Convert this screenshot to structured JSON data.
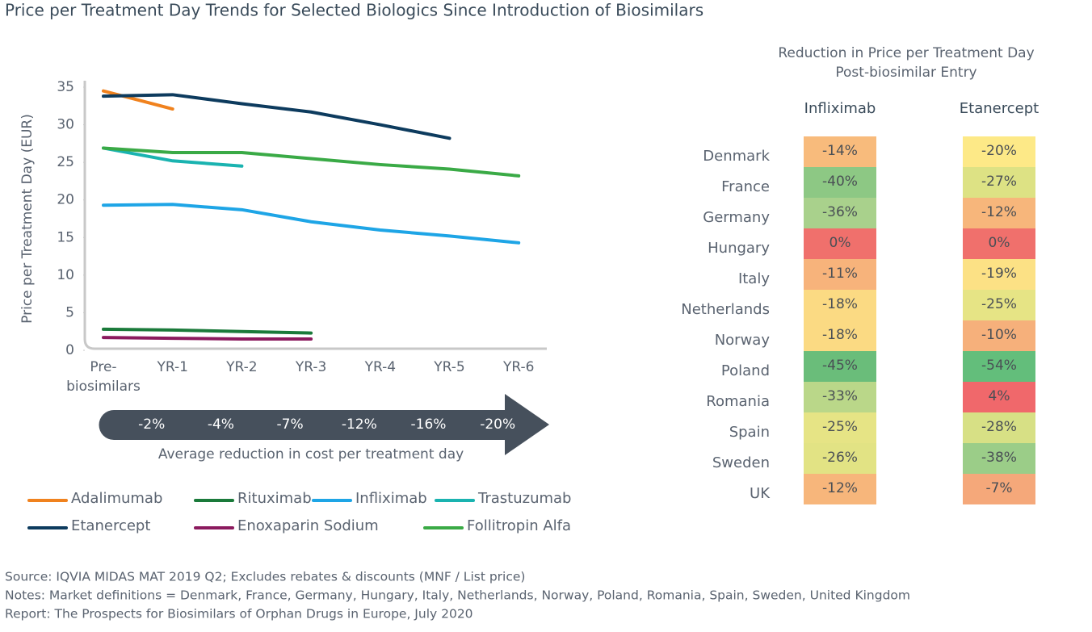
{
  "title": "Price per Treatment Day Trends for Selected Biologics Since Introduction of Biosimilars",
  "notes": [
    "Source: IQVIA MIDAS MAT 2019 Q2; Excludes rebates & discounts (MNF / List price)",
    "Notes: Market definitions = Denmark, France, Germany, Hungary, Italy, Netherlands, Norway, Poland, Romania, Spain, Sweden, United Kingdom",
    "Report: The Prospects for Biosimilars of Orphan Drugs in Europe, July 2020"
  ],
  "chart_data": [
    {
      "type": "line",
      "y_label": "Price per Treatment Day (EUR)",
      "categories": [
        "Pre-biosimilars",
        "YR-1",
        "YR-2",
        "YR-3",
        "YR-4",
        "YR-5",
        "YR-6"
      ],
      "ylim": [
        0,
        35
      ],
      "yticks": [
        0,
        5,
        10,
        15,
        20,
        25,
        30,
        35
      ],
      "grid": false,
      "series": [
        {
          "name": "Adalimumab",
          "color": "#f0821e",
          "values": [
            34.5,
            32.1,
            null,
            null,
            null,
            null,
            null
          ]
        },
        {
          "name": "Rituximab",
          "color": "#1a7a3a",
          "values": [
            2.8,
            2.7,
            2.5,
            2.3,
            null,
            null,
            null
          ]
        },
        {
          "name": "Infliximab",
          "color": "#1ea5e6",
          "values": [
            19.3,
            19.4,
            18.7,
            17.1,
            16.0,
            15.2,
            14.3
          ]
        },
        {
          "name": "Trastuzumab",
          "color": "#1ab3b0",
          "values": [
            26.9,
            25.2,
            24.5,
            null,
            null,
            null,
            null
          ]
        },
        {
          "name": "Etanercept",
          "color": "#0d3b5e",
          "values": [
            33.8,
            34.0,
            32.8,
            31.7,
            30.0,
            28.2,
            null
          ]
        },
        {
          "name": "Enoxaparin Sodium",
          "color": "#8b1a5e",
          "values": [
            1.7,
            1.6,
            1.5,
            1.5,
            null,
            null,
            null
          ]
        },
        {
          "name": "Follitropin Alfa",
          "color": "#3aaa46",
          "values": [
            26.9,
            26.3,
            26.3,
            25.5,
            24.7,
            24.1,
            23.2
          ]
        }
      ],
      "reductions": {
        "caption": "Average reduction in cost per treatment day",
        "values": [
          -2,
          -4,
          -7,
          -12,
          -16,
          -20
        ],
        "value_labels": [
          "-2%",
          "-4%",
          "-7%",
          "-12%",
          "-16%",
          "-20%"
        ]
      }
    },
    {
      "type": "heatmap",
      "title": "Reduction in Price per Treatment Day Post-biosimilar Entry",
      "columns": [
        "Infliximab",
        "Etanercept"
      ],
      "rows": [
        "Denmark",
        "France",
        "Germany",
        "Hungary",
        "Italy",
        "Netherlands",
        "Norway",
        "Poland",
        "Romania",
        "Spain",
        "Sweden",
        "UK"
      ],
      "values": [
        [
          -14,
          -20
        ],
        [
          -40,
          -27
        ],
        [
          -36,
          -12
        ],
        [
          0,
          0
        ],
        [
          -11,
          -19
        ],
        [
          -18,
          -25
        ],
        [
          -18,
          -10
        ],
        [
          -45,
          -54
        ],
        [
          -33,
          4
        ],
        [
          -25,
          -28
        ],
        [
          -26,
          -38
        ],
        [
          -12,
          -7
        ]
      ],
      "value_labels": [
        [
          "-14%",
          "-20%"
        ],
        [
          "-40%",
          "-27%"
        ],
        [
          "-36%",
          "-12%"
        ],
        [
          "0%",
          "0%"
        ],
        [
          "-11%",
          "-19%"
        ],
        [
          "-18%",
          "-25%"
        ],
        [
          "-18%",
          "-10%"
        ],
        [
          "-45%",
          "-54%"
        ],
        [
          "-33%",
          "4%"
        ],
        [
          "-25%",
          "-28%"
        ],
        [
          "-26%",
          "-38%"
        ],
        [
          "-12%",
          "-7%"
        ]
      ]
    }
  ]
}
